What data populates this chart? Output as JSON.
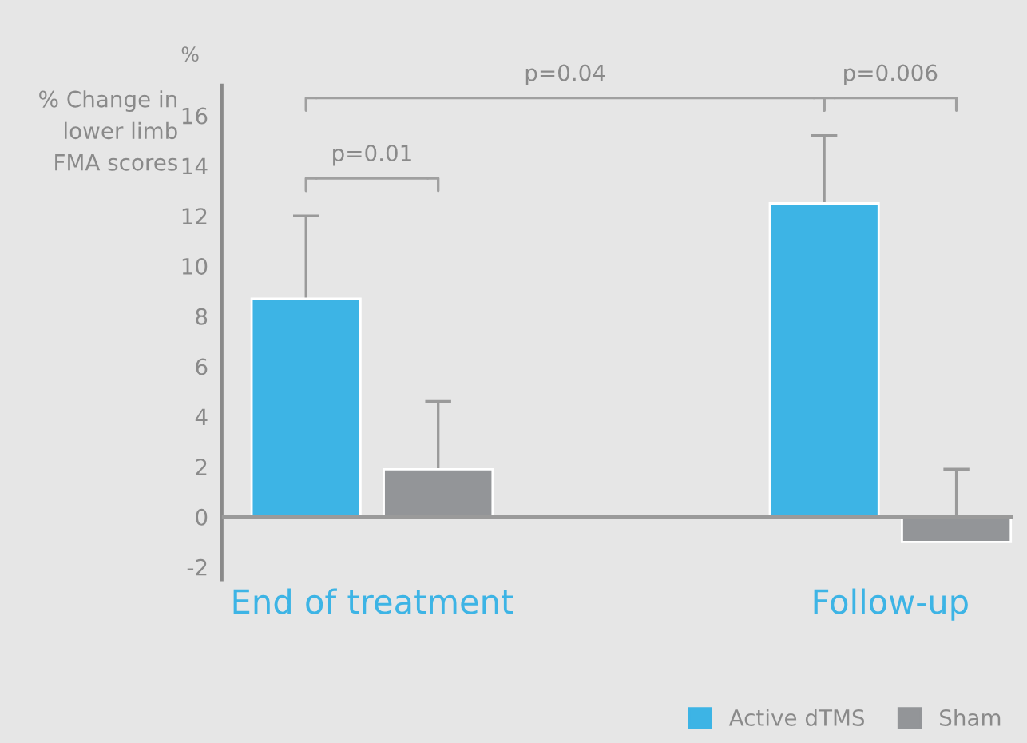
{
  "chart_data": {
    "type": "bar",
    "categories": [
      "End of treatment",
      "Follow-up"
    ],
    "series": [
      {
        "name": "Active dTMS",
        "color": "#3db4e5",
        "values": [
          8.7,
          12.5
        ],
        "errors": [
          [
            8.7,
            12.0
          ],
          [
            12.5,
            15.2
          ]
        ]
      },
      {
        "name": "Sham",
        "color": "#939598",
        "values": [
          1.9,
          -1.0
        ],
        "errors": [
          [
            1.9,
            4.6
          ],
          [
            -1.0,
            1.9
          ]
        ]
      }
    ],
    "ylabel": "% Change in\nlower limb\nFMA scores",
    "annotations": [
      "%",
      "p=0.04",
      "p=0.01",
      "p=0.006"
    ],
    "ylim": [
      -2.5,
      17.2
    ],
    "yticks": [
      -2,
      0,
      2,
      4,
      6,
      8,
      10,
      12,
      14,
      16
    ],
    "grid": false,
    "legend": "bottom right"
  }
}
